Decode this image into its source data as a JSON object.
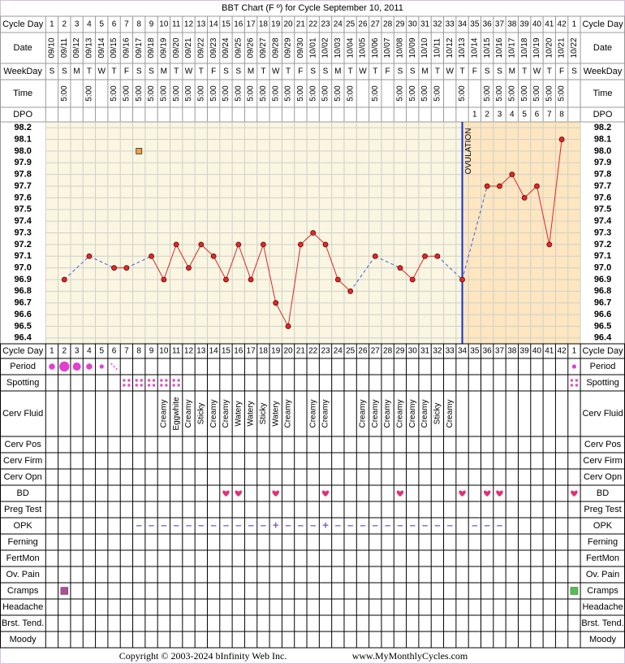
{
  "chart_data": {
    "type": "line",
    "title": "BBT Chart (F º) for Cycle September 10, 2011",
    "header_labels": {
      "cycle_day": "Cycle Day",
      "date": "Date",
      "weekday": "WeekDay",
      "time": "Time",
      "dpo": "DPO"
    },
    "cycle_day": [
      1,
      2,
      3,
      4,
      5,
      6,
      7,
      8,
      9,
      10,
      11,
      12,
      13,
      14,
      15,
      16,
      17,
      18,
      19,
      20,
      21,
      22,
      23,
      24,
      25,
      26,
      27,
      28,
      29,
      30,
      31,
      32,
      33,
      34,
      35,
      36,
      37,
      38,
      39,
      40,
      41,
      42,
      1
    ],
    "categories": [
      "09/10",
      "09/11",
      "09/12",
      "09/13",
      "09/14",
      "09/15",
      "09/16",
      "09/17",
      "09/18",
      "09/19",
      "09/20",
      "09/21",
      "09/22",
      "09/23",
      "09/24",
      "09/25",
      "09/26",
      "09/27",
      "09/28",
      "09/29",
      "09/30",
      "10/01",
      "10/02",
      "10/03",
      "10/04",
      "10/05",
      "10/06",
      "10/07",
      "10/08",
      "10/09",
      "10/10",
      "10/11",
      "10/12",
      "10/13",
      "10/14",
      "10/15",
      "10/16",
      "10/17",
      "10/18",
      "10/19",
      "10/20",
      "10/21",
      "10/22"
    ],
    "weekday": [
      "S",
      "S",
      "M",
      "T",
      "W",
      "T",
      "F",
      "S",
      "S",
      "M",
      "T",
      "W",
      "T",
      "F",
      "S",
      "S",
      "M",
      "T",
      "W",
      "T",
      "F",
      "S",
      "S",
      "M",
      "T",
      "W",
      "T",
      "F",
      "S",
      "S",
      "M",
      "T",
      "W",
      "T",
      "F",
      "S",
      "S",
      "M",
      "T",
      "W",
      "T",
      "F",
      "S"
    ],
    "time": [
      null,
      "5:00",
      null,
      "5:00",
      null,
      "5:00",
      "5:00",
      "5:00",
      "5:00",
      "5:00",
      "5:00",
      "5:00",
      "5:00",
      "5:00",
      "5:00",
      "5:00",
      "5:00",
      "5:00",
      "5:00",
      "5:00",
      "5:00",
      "5:00",
      "5:00",
      "5:00",
      "5:00",
      null,
      "5:00",
      null,
      "5:00",
      "5:00",
      "5:00",
      "5:00",
      null,
      "5:00",
      null,
      "5:00",
      "5:00",
      "5:00",
      "5:00",
      "5:00",
      "5:00",
      "5:00",
      null
    ],
    "dpo": [
      null,
      null,
      null,
      null,
      null,
      null,
      null,
      null,
      null,
      null,
      null,
      null,
      null,
      null,
      null,
      null,
      null,
      null,
      null,
      null,
      null,
      null,
      null,
      null,
      null,
      null,
      null,
      null,
      null,
      null,
      null,
      null,
      null,
      null,
      1,
      2,
      3,
      4,
      5,
      6,
      7,
      8,
      null
    ],
    "series": [
      {
        "color": "#e02828",
        "gap_color": "#4060e0",
        "values": [
          null,
          96.9,
          null,
          97.1,
          null,
          97.0,
          97.0,
          null,
          97.1,
          96.9,
          97.2,
          97.0,
          97.2,
          97.1,
          96.9,
          97.2,
          96.9,
          97.2,
          96.7,
          96.5,
          97.2,
          97.3,
          97.2,
          96.9,
          96.8,
          null,
          97.1,
          null,
          97.0,
          96.9,
          97.1,
          97.1,
          null,
          96.9,
          null,
          97.7,
          97.7,
          97.8,
          97.6,
          97.7,
          97.2,
          98.1,
          null
        ]
      }
    ],
    "discarded": {
      "color": "#f0a040",
      "values": [
        null,
        null,
        null,
        null,
        null,
        null,
        null,
        98.0,
        null,
        null,
        null,
        null,
        null,
        null,
        null,
        null,
        null,
        null,
        null,
        null,
        null,
        null,
        null,
        null,
        null,
        null,
        null,
        null,
        null,
        null,
        null,
        null,
        null,
        null,
        null,
        null,
        null,
        null,
        null,
        null,
        null,
        null,
        null
      ]
    },
    "ovulation": {
      "index": 33,
      "label": "OVULATION",
      "color": "#1030d0"
    },
    "ylim": [
      96.35,
      98.25
    ],
    "yticks": [
      98.2,
      98.1,
      {
        "value": 98,
        "label": "98.0"
      },
      97.9,
      97.8,
      97.7,
      97.6,
      97.5,
      97.4,
      97.3,
      97.2,
      97.1,
      {
        "value": 97,
        "label": "97.0"
      },
      96.9,
      96.8,
      96.7,
      96.6,
      96.5,
      96.4
    ],
    "grid": true,
    "rows": [
      {
        "label": "Period",
        "color": "#e040d0",
        "values": [
          2,
          4,
          3,
          2,
          1,
          0.5,
          null,
          null,
          null,
          null,
          null,
          null,
          null,
          null,
          null,
          null,
          null,
          null,
          null,
          null,
          null,
          null,
          null,
          null,
          null,
          null,
          null,
          null,
          null,
          null,
          null,
          null,
          null,
          null,
          null,
          null,
          null,
          null,
          null,
          null,
          null,
          null,
          1
        ]
      },
      {
        "label": "Spotting",
        "color": "#e050c0",
        "values": [
          null,
          null,
          null,
          null,
          null,
          null,
          true,
          true,
          true,
          true,
          true,
          null,
          null,
          null,
          null,
          null,
          null,
          null,
          null,
          null,
          null,
          null,
          null,
          null,
          null,
          null,
          null,
          null,
          null,
          null,
          null,
          null,
          null,
          null,
          null,
          null,
          null,
          null,
          null,
          null,
          null,
          null,
          true
        ]
      },
      {
        "label": "Cerv Fluid",
        "values": [
          null,
          null,
          null,
          null,
          null,
          null,
          null,
          null,
          null,
          "Creamy",
          "Eggwhite",
          "Creamy",
          "Sticky",
          "Creamy",
          "Creamy",
          "Watery",
          "Watery",
          "Sticky",
          "Watery",
          "Creamy",
          null,
          "Creamy",
          "Creamy",
          null,
          null,
          "Creamy",
          "Creamy",
          "Creamy",
          "Creamy",
          "Creamy",
          "Creamy",
          "Sticky",
          "Creamy",
          null,
          null,
          null,
          null,
          null,
          null,
          null,
          null,
          null,
          null
        ]
      },
      {
        "label": "Cerv Pos"
      },
      {
        "label": "Cerv Firm"
      },
      {
        "label": "Cerv Opn"
      },
      {
        "label": "BD",
        "color": "#e0307a",
        "values": [
          null,
          null,
          null,
          null,
          null,
          null,
          null,
          null,
          null,
          null,
          null,
          null,
          null,
          null,
          true,
          true,
          null,
          null,
          true,
          null,
          null,
          null,
          true,
          null,
          null,
          null,
          null,
          null,
          true,
          null,
          null,
          null,
          null,
          true,
          null,
          true,
          true,
          null,
          null,
          null,
          null,
          null,
          true
        ]
      },
      {
        "label": "Preg Test"
      },
      {
        "label": "OPK",
        "color": "#7a5cc8",
        "values": [
          null,
          null,
          null,
          null,
          null,
          null,
          null,
          "–",
          "–",
          "–",
          "–",
          "–",
          "–",
          "–",
          "–",
          "–",
          "–",
          "–",
          "+",
          "–",
          "–",
          "–",
          "+",
          "–",
          "–",
          "–",
          "–",
          "–",
          "–",
          "–",
          "–",
          "–",
          "–",
          null,
          "–",
          "–",
          "–",
          null,
          null,
          null,
          null,
          null,
          null
        ]
      },
      {
        "label": "Ferning"
      },
      {
        "label": "FertMon"
      },
      {
        "label": "Ov. Pain"
      },
      {
        "label": "Cramps",
        "colors": [
          null,
          "#b04a9a",
          null,
          null,
          null,
          null,
          null,
          null,
          null,
          null,
          null,
          null,
          null,
          null,
          null,
          null,
          null,
          null,
          null,
          null,
          null,
          null,
          null,
          null,
          null,
          null,
          null,
          null,
          null,
          null,
          null,
          null,
          null,
          null,
          null,
          null,
          null,
          null,
          null,
          null,
          null,
          null,
          "#4cc44c"
        ],
        "values": [
          null,
          true,
          null,
          null,
          null,
          null,
          null,
          null,
          null,
          null,
          null,
          null,
          null,
          null,
          null,
          null,
          null,
          null,
          null,
          null,
          null,
          null,
          null,
          null,
          null,
          null,
          null,
          null,
          null,
          null,
          null,
          null,
          null,
          null,
          null,
          null,
          null,
          null,
          null,
          null,
          null,
          null,
          true
        ]
      },
      {
        "label": "Headache"
      },
      {
        "label": "Brst. Tend."
      },
      {
        "label": "Moody"
      }
    ]
  },
  "footer": {
    "copyright": "Copyright © 2003-2024 bInfinity Web Inc.",
    "url": "www.MyMonthlyCycles.com"
  }
}
